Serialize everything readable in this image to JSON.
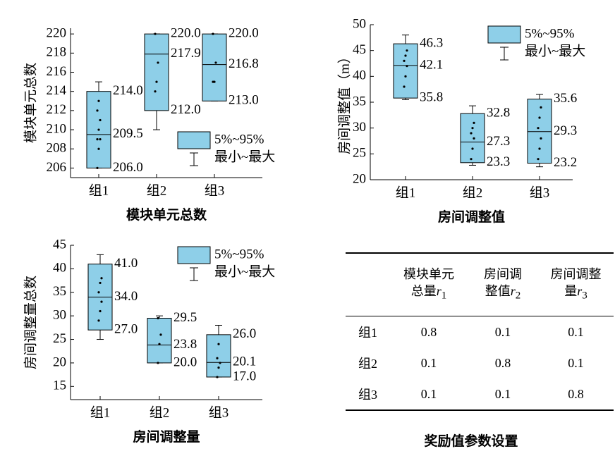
{
  "chart_data": [
    {
      "type": "box",
      "title": "模块单元总数",
      "ylabel": "模块单元总数",
      "categories": [
        "组1",
        "组2",
        "组3"
      ],
      "ylim": [
        205,
        220.6
      ],
      "yticks": [
        206,
        208,
        210,
        212,
        214,
        216,
        218,
        220
      ],
      "legend": {
        "loc": "lower right",
        "box": "5%~95%",
        "whisker": "最小~最大"
      },
      "color": "#8ecfe8",
      "boxes": [
        {
          "whisker_low": 206,
          "box_low": 206,
          "median": 209.5,
          "box_high": 214,
          "whisker_high": 215,
          "box_low_label": "206.0",
          "median_label": "209.5",
          "box_high_label": "214.0",
          "points": [
            206,
            208,
            209,
            209,
            210,
            211,
            212,
            213
          ]
        },
        {
          "whisker_low": 210,
          "box_low": 212,
          "median": 217.9,
          "box_high": 220,
          "whisker_high": 220,
          "box_low_label": "212.0",
          "median_label": "217.9",
          "box_high_label": "220.0",
          "points": [
            214,
            215,
            217,
            220
          ]
        },
        {
          "whisker_low": 213,
          "box_low": 213,
          "median": 216.8,
          "box_high": 220,
          "whisker_high": 220,
          "box_low_label": "213.0",
          "median_label": "216.8",
          "box_high_label": "220.0",
          "points": [
            215,
            215,
            217,
            220
          ]
        }
      ]
    },
    {
      "type": "box",
      "title": "房间调整值",
      "ylabel": "房间调整值（m）",
      "categories": [
        "组1",
        "组2",
        "组3"
      ],
      "ylim": [
        20,
        50
      ],
      "yticks": [
        20,
        25,
        30,
        35,
        40,
        45,
        50
      ],
      "legend": {
        "loc": "upper right",
        "box": "5%~95%",
        "whisker": "最小~最大"
      },
      "color": "#8ecfe8",
      "boxes": [
        {
          "whisker_low": 35.5,
          "box_low": 35.8,
          "median": 42.1,
          "box_high": 46.3,
          "whisker_high": 48,
          "box_low_label": "35.8",
          "median_label": "42.1",
          "box_high_label": "46.3",
          "points": [
            38,
            40,
            42,
            43,
            44,
            45
          ]
        },
        {
          "whisker_low": 22.8,
          "box_low": 23.3,
          "median": 27.3,
          "box_high": 32.8,
          "whisker_high": 34.3,
          "box_low_label": "23.3",
          "median_label": "27.3",
          "box_high_label": "32.8",
          "points": [
            24,
            26,
            28,
            29,
            30,
            31
          ]
        },
        {
          "whisker_low": 22.5,
          "box_low": 23.2,
          "median": 29.3,
          "box_high": 35.6,
          "whisker_high": 36.5,
          "box_low_label": "23.2",
          "median_label": "29.3",
          "box_high_label": "35.6",
          "points": [
            24,
            26,
            28,
            30,
            32,
            34
          ]
        }
      ]
    },
    {
      "type": "box",
      "title": "房间调整量",
      "ylabel": "房间调整量总数",
      "categories": [
        "组1",
        "组2",
        "组3"
      ],
      "ylim": [
        12.2,
        45
      ],
      "yticks": [
        15,
        20,
        25,
        30,
        35,
        40,
        45
      ],
      "legend": {
        "loc": "upper right",
        "box": "5%~95%",
        "whisker": "最小~最大"
      },
      "color": "#8ecfe8",
      "boxes": [
        {
          "whisker_low": 25,
          "box_low": 27,
          "median": 34,
          "box_high": 41,
          "whisker_high": 43,
          "box_low_label": "27.0",
          "median_label": "34.0",
          "box_high_label": "41.0",
          "points": [
            29,
            31,
            33,
            35,
            37,
            38
          ]
        },
        {
          "whisker_low": 20,
          "box_low": 20,
          "median": 23.8,
          "box_high": 29.5,
          "whisker_high": 30,
          "box_low_label": "20.0",
          "median_label": "23.8",
          "box_high_label": "29.5",
          "points": [
            20,
            24,
            26,
            29.5
          ]
        },
        {
          "whisker_low": 17,
          "box_low": 17,
          "median": 20.1,
          "box_high": 26,
          "whisker_high": 28,
          "box_low_label": "17.0",
          "median_label": "20.1",
          "box_high_label": "26.0",
          "points": [
            17,
            19,
            20,
            21,
            24
          ]
        }
      ]
    }
  ],
  "table": {
    "title": "奖励值参数设置",
    "headers": [
      {
        "text": "模块单元总量",
        "var": "r",
        "sub": "1"
      },
      {
        "text": "房间调整值",
        "var": "r",
        "sub": "2"
      },
      {
        "text": "房间调整量",
        "var": "r",
        "sub": "3"
      }
    ],
    "rows": [
      [
        "组1",
        0.8,
        0.1,
        0.1
      ],
      [
        "组2",
        0.1,
        0.8,
        0.1
      ],
      [
        "组3",
        0.1,
        0.1,
        0.8
      ]
    ]
  }
}
